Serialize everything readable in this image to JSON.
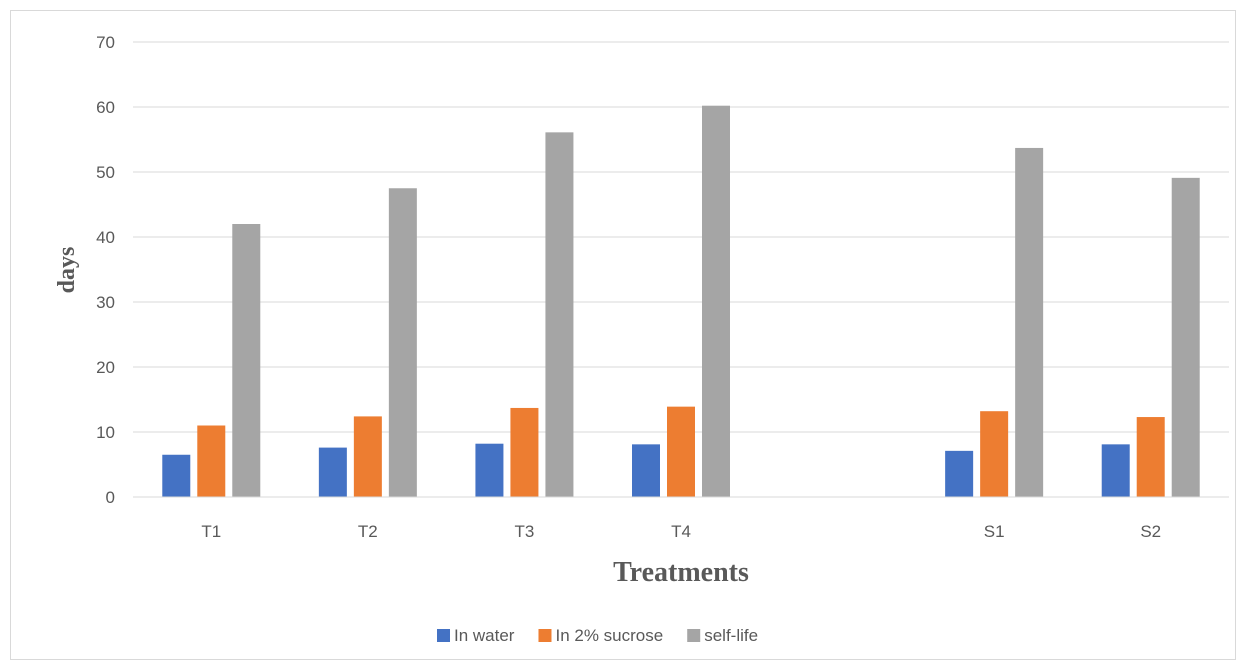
{
  "chart_data": {
    "type": "bar",
    "title": "",
    "xlabel": "Treatments",
    "ylabel": "days",
    "ylim": [
      0,
      70
    ],
    "yticks": [
      0,
      10,
      20,
      30,
      40,
      50,
      60,
      70
    ],
    "grid": true,
    "legend_position": "bottom",
    "categories": [
      "T1",
      "T2",
      "T3",
      "T4",
      "",
      "S1",
      "S2"
    ],
    "series": [
      {
        "name": "In water",
        "color": "#4472C4",
        "values": [
          6.5,
          7.6,
          8.2,
          8.1,
          null,
          7.1,
          8.1
        ]
      },
      {
        "name": "In 2% sucrose",
        "color": "#ED7D31",
        "values": [
          11.0,
          12.4,
          13.7,
          13.9,
          null,
          13.2,
          12.3
        ]
      },
      {
        "name": "self-life",
        "color": "#A5A5A5",
        "values": [
          42.0,
          47.5,
          56.1,
          60.2,
          null,
          53.7,
          49.1
        ]
      }
    ]
  }
}
